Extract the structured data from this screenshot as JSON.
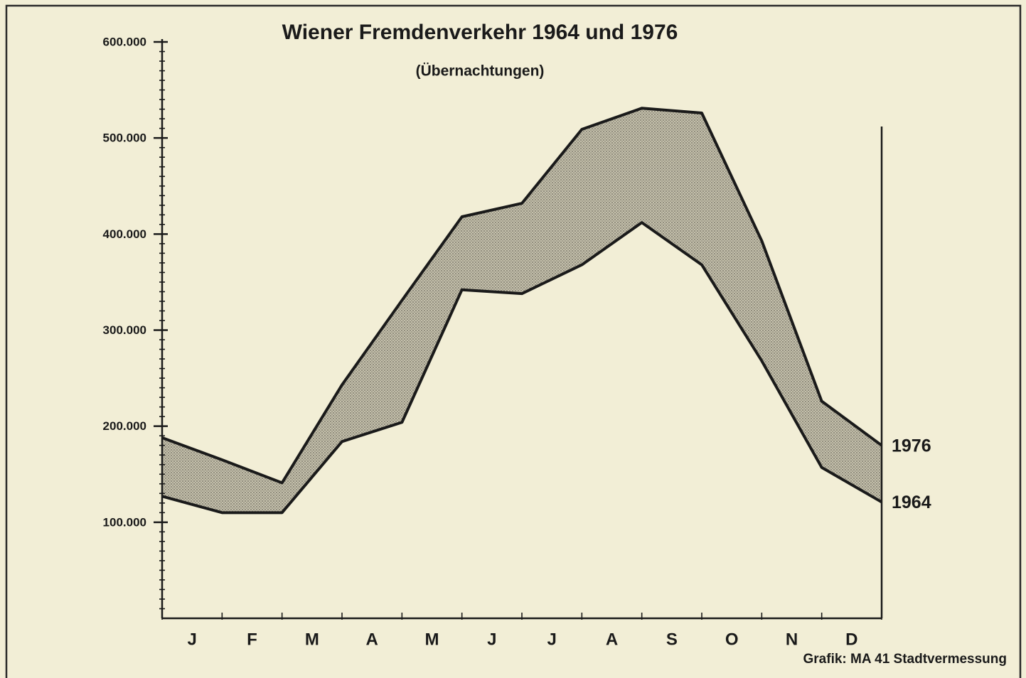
{
  "chart_data": {
    "type": "line",
    "title": "Wiener Fremdenverkehr 1964 und 1976",
    "subtitle": "(Übernachtungen)",
    "source": "Grafik: MA 41 Stadtvermessung",
    "x": [
      0,
      1,
      2,
      3,
      4,
      5,
      6,
      7,
      8,
      9,
      10,
      11,
      12
    ],
    "xlim": [
      0,
      12
    ],
    "xticks": [
      {
        "value": 0.5,
        "label": "J"
      },
      {
        "value": 1.5,
        "label": "F"
      },
      {
        "value": 2.5,
        "label": "M"
      },
      {
        "value": 3.5,
        "label": "A"
      },
      {
        "value": 4.5,
        "label": "M"
      },
      {
        "value": 5.5,
        "label": "J"
      },
      {
        "value": 6.5,
        "label": "J"
      },
      {
        "value": 7.5,
        "label": "A"
      },
      {
        "value": 8.5,
        "label": "S"
      },
      {
        "value": 9.5,
        "label": "O"
      },
      {
        "value": 10.5,
        "label": "N"
      },
      {
        "value": 11.5,
        "label": "D"
      }
    ],
    "ylim": [
      0,
      600000
    ],
    "yticks": [
      {
        "value": 100000,
        "label": "100.000"
      },
      {
        "value": 200000,
        "label": "200.000"
      },
      {
        "value": 300000,
        "label": "300.000"
      },
      {
        "value": 400000,
        "label": "400.000"
      },
      {
        "value": 500000,
        "label": "500.000"
      },
      {
        "value": 600000,
        "label": "600.000"
      }
    ],
    "fill_between": "#b8b4a2",
    "series": [
      {
        "name": "1976",
        "color": "#1a1a1a",
        "values": [
          188000,
          165000,
          141000,
          243000,
          331000,
          418000,
          432000,
          509000,
          531000,
          526000,
          393000,
          226000,
          180000
        ]
      },
      {
        "name": "1964",
        "color": "#1a1a1a",
        "values": [
          127000,
          110000,
          110000,
          184000,
          204000,
          342000,
          338000,
          368000,
          412000,
          368000,
          268000,
          157000,
          121000
        ]
      }
    ]
  }
}
